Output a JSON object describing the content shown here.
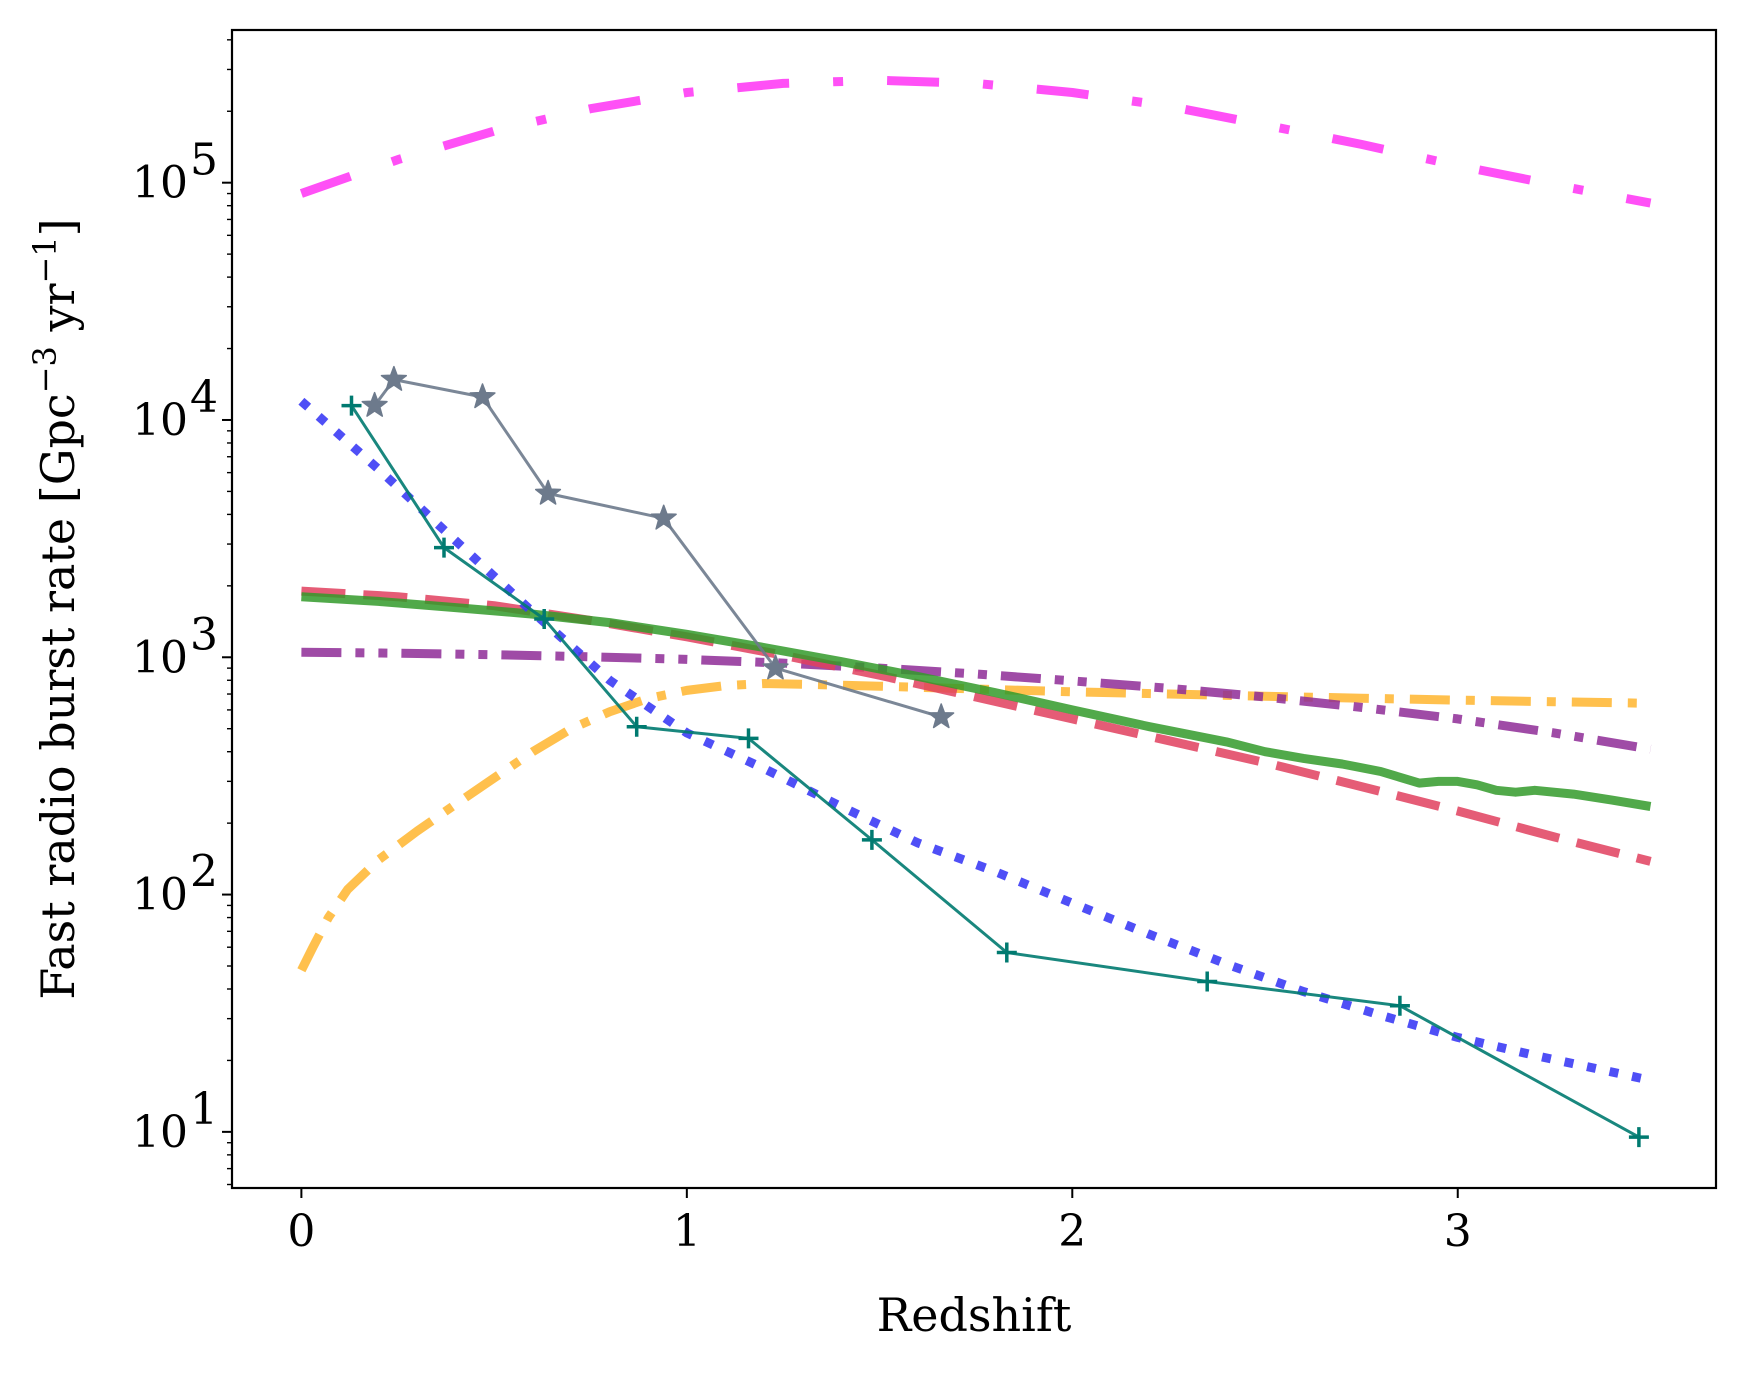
{
  "chart_data": {
    "type": "line",
    "title": "",
    "xlabel": "Redshift",
    "ylabel": {
      "main": "Fast radio burst rate [Gpc",
      "exp1": "−3",
      "mid": " yr",
      "exp2": "−1",
      "end": "]"
    },
    "xlim": [
      -0.18,
      3.67
    ],
    "ylim": [
      5.8,
      440000
    ],
    "yscale": "log",
    "x_ticks": [
      0,
      1,
      2,
      3
    ],
    "x_tick_labels": [
      "0",
      "1",
      "2",
      "3"
    ],
    "y_ticks": [
      {
        "value": 10,
        "base": "10",
        "exp": "1"
      },
      {
        "value": 100,
        "base": "10",
        "exp": "2"
      },
      {
        "value": 1000,
        "base": "10",
        "exp": "3"
      },
      {
        "value": 10000,
        "base": "10",
        "exp": "4"
      },
      {
        "value": 100000,
        "base": "10",
        "exp": "5"
      }
    ],
    "grid": false,
    "series": [
      {
        "name": "magenta",
        "color": "#ff3df5",
        "style": "dashdot-long",
        "width": 9,
        "opacity": 0.9,
        "x": [
          0,
          0.25,
          0.5,
          0.75,
          1.0,
          1.25,
          1.5,
          1.75,
          2.0,
          2.25,
          2.5,
          2.75,
          3.0,
          3.25,
          3.5
        ],
        "y": [
          90000,
          125000,
          165000,
          205000,
          240000,
          262000,
          270000,
          262000,
          240000,
          210000,
          175000,
          145000,
          118000,
          98000,
          82000
        ]
      },
      {
        "name": "orange",
        "color": "#ffb52e",
        "style": "dashdot",
        "width": 9,
        "opacity": 0.85,
        "x": [
          0,
          0.03,
          0.07,
          0.12,
          0.2,
          0.3,
          0.4,
          0.5,
          0.6,
          0.7,
          0.8,
          0.9,
          1.0,
          1.1,
          1.2,
          1.3,
          1.5,
          1.75,
          2.0,
          2.25,
          2.5,
          2.75,
          3.0,
          3.25,
          3.5
        ],
        "y": [
          48,
          60,
          80,
          105,
          140,
          185,
          240,
          310,
          400,
          500,
          590,
          670,
          725,
          760,
          775,
          770,
          755,
          735,
          715,
          700,
          685,
          672,
          660,
          650,
          640
        ]
      },
      {
        "name": "purple",
        "color": "#8e2b96",
        "style": "dashdotdot",
        "width": 9,
        "opacity": 0.85,
        "x": [
          0,
          0.25,
          0.5,
          0.75,
          1.0,
          1.25,
          1.5,
          1.75,
          2.0,
          2.25,
          2.5,
          2.75,
          3.0,
          3.25,
          3.5
        ],
        "y": [
          1050,
          1040,
          1025,
          1005,
          980,
          945,
          900,
          850,
          795,
          740,
          680,
          615,
          550,
          480,
          410
        ]
      },
      {
        "name": "red",
        "color": "#e0405e",
        "style": "dashed",
        "width": 9,
        "opacity": 0.85,
        "x": [
          0,
          0.25,
          0.5,
          0.75,
          1.0,
          1.25,
          1.5,
          1.75,
          2.0,
          2.25,
          2.5,
          2.75,
          3.0,
          3.25,
          3.5
        ],
        "y": [
          1900,
          1800,
          1650,
          1430,
          1220,
          1020,
          840,
          680,
          550,
          445,
          360,
          285,
          225,
          175,
          138
        ]
      },
      {
        "name": "green",
        "color": "#329a2a",
        "style": "solid",
        "width": 9,
        "opacity": 0.85,
        "x": [
          0,
          0.2,
          0.4,
          0.6,
          0.8,
          1.0,
          1.2,
          1.4,
          1.6,
          1.8,
          2.0,
          2.2,
          2.4,
          2.5,
          2.6,
          2.7,
          2.8,
          2.9,
          2.95,
          3.0,
          3.05,
          3.1,
          3.15,
          3.2,
          3.3,
          3.4,
          3.5
        ],
        "y": [
          1800,
          1720,
          1620,
          1520,
          1400,
          1250,
          1100,
          960,
          830,
          710,
          600,
          510,
          440,
          400,
          375,
          355,
          330,
          295,
          300,
          300,
          290,
          275,
          270,
          275,
          265,
          250,
          235
        ]
      },
      {
        "name": "blue",
        "color": "#3c3cf5",
        "style": "dotted",
        "width": 9,
        "opacity": 0.9,
        "x": [
          0,
          0.2,
          0.4,
          0.6,
          0.8,
          1.0,
          1.2,
          1.4,
          1.6,
          1.8,
          2.0,
          2.2,
          2.4,
          2.6,
          2.8,
          3.0,
          3.2,
          3.5
        ],
        "y": [
          12000,
          6200,
          3100,
          1550,
          800,
          480,
          340,
          235,
          165,
          125,
          92,
          68,
          51,
          39,
          31,
          25,
          21,
          16.5
        ]
      },
      {
        "name": "gray-stars",
        "color": "#6d7a8c",
        "style": "solid",
        "width": 3,
        "opacity": 0.9,
        "marker": "star",
        "x": [
          0.19,
          0.24,
          0.47,
          0.64,
          0.94,
          1.23,
          1.66
        ],
        "y": [
          11500,
          14800,
          12500,
          4900,
          3850,
          900,
          560
        ]
      },
      {
        "name": "teal-plus",
        "color": "#007a70",
        "style": "solid",
        "width": 3,
        "opacity": 0.9,
        "marker": "plus",
        "x": [
          0.13,
          0.37,
          0.63,
          0.87,
          1.16,
          1.48,
          1.83,
          2.35,
          2.85,
          3.47
        ],
        "y": [
          11500,
          2900,
          1450,
          510,
          455,
          170,
          57,
          43,
          34,
          9.5
        ]
      }
    ]
  }
}
